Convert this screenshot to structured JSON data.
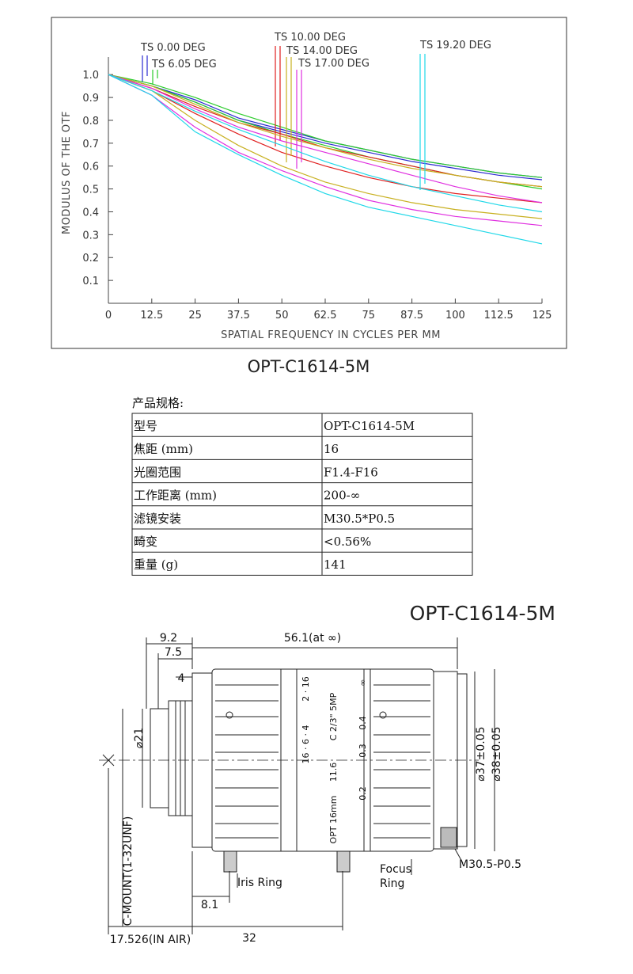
{
  "chart_data": {
    "type": "line",
    "xlabel": "SPATIAL FREQUENCY IN CYCLES PER MM",
    "ylabel": "MODULUS OF THE OTF",
    "caption": "OPT-C1614-5M",
    "x": [
      0,
      12.5,
      25,
      37.5,
      50,
      62.5,
      75,
      87.5,
      100,
      112.5,
      125
    ],
    "xlim": [
      0,
      125
    ],
    "xticks": [
      0,
      12.5,
      25,
      37.5,
      50,
      62.5,
      75,
      87.5,
      100,
      112.5,
      125
    ],
    "ylim": [
      0,
      1.25
    ],
    "yticks": [
      0.1,
      0.2,
      0.3,
      0.4,
      0.5,
      0.6,
      0.7,
      0.8,
      0.9,
      {
        "value": 1,
        "label": "1.0"
      }
    ],
    "series": [
      {
        "name": "TS 0.00 DEG",
        "color": "#2a2ad0",
        "t_values": [
          1,
          0.95,
          0.88,
          0.8,
          0.75,
          0.7,
          0.66,
          0.62,
          0.59,
          0.56,
          0.54
        ],
        "s_values": [
          1,
          0.95,
          0.89,
          0.81,
          0.76,
          0.71,
          0.67,
          0.63,
          0.6,
          0.57,
          0.55
        ]
      },
      {
        "name": "TS 6.05 DEG",
        "color": "#2ccc2c",
        "t_values": [
          1,
          0.96,
          0.9,
          0.83,
          0.77,
          0.71,
          0.67,
          0.63,
          0.6,
          0.57,
          0.55
        ],
        "s_values": [
          1,
          0.95,
          0.88,
          0.8,
          0.74,
          0.69,
          0.64,
          0.6,
          0.56,
          0.53,
          0.5
        ]
      },
      {
        "name": "TS 10.00 DEG",
        "color": "#e02020",
        "t_values": [
          1,
          0.94,
          0.86,
          0.79,
          0.74,
          0.68,
          0.64,
          0.6,
          0.56,
          0.53,
          0.51
        ],
        "s_values": [
          1,
          0.93,
          0.83,
          0.74,
          0.66,
          0.6,
          0.55,
          0.51,
          0.48,
          0.46,
          0.44
        ]
      },
      {
        "name": "TS 14.00 DEG",
        "color": "#c8b020",
        "t_values": [
          1,
          0.95,
          0.87,
          0.79,
          0.73,
          0.68,
          0.63,
          0.59,
          0.56,
          0.53,
          0.51
        ],
        "s_values": [
          1,
          0.93,
          0.8,
          0.69,
          0.6,
          0.53,
          0.48,
          0.44,
          0.41,
          0.39,
          0.37
        ]
      },
      {
        "name": "TS 17.00 DEG",
        "color": "#e030e0",
        "t_values": [
          1,
          0.94,
          0.85,
          0.77,
          0.71,
          0.66,
          0.61,
          0.56,
          0.51,
          0.47,
          0.44
        ],
        "s_values": [
          1,
          0.91,
          0.77,
          0.66,
          0.58,
          0.51,
          0.45,
          0.41,
          0.38,
          0.36,
          0.34
        ]
      },
      {
        "name": "TS 19.20 DEG",
        "color": "#20d8e8",
        "t_values": [
          1,
          0.93,
          0.84,
          0.76,
          0.69,
          0.62,
          0.56,
          0.51,
          0.47,
          0.43,
          0.4
        ],
        "s_values": [
          1,
          0.91,
          0.75,
          0.65,
          0.56,
          0.48,
          0.42,
          0.38,
          0.34,
          0.3,
          0.26
        ]
      }
    ]
  },
  "table": {
    "title": "产品规格:",
    "rows": [
      [
        "型号",
        "OPT-C1614-5M"
      ],
      [
        "焦距 (mm)",
        "16"
      ],
      [
        "光圈范围",
        "F1.4-F16"
      ],
      [
        "工作距离 (mm)",
        "200-∞"
      ],
      [
        "滤镜安装",
        "M30.5*P0.5"
      ],
      [
        "畸变",
        "<0.56%"
      ],
      [
        "重量 (g)",
        "141"
      ]
    ]
  },
  "drawing": {
    "title": "OPT-C1614-5M",
    "dims": {
      "d92": "9.2",
      "d75": "7.5",
      "d4": "4",
      "d561": "56.1(at ∞)",
      "d21": "⌀21",
      "d37": "⌀37±0.05",
      "d38": "⌀38±0.05",
      "d81": "8.1",
      "d17": "17.526(IN AIR)",
      "d32": "32"
    },
    "labels": {
      "mount": "C-MOUNT(1-32UNF)",
      "iris": "Iris Ring",
      "focus1": "Focus",
      "focus2": "Ring",
      "filter": "M30.5-P0.5"
    },
    "engraving": {
      "a": "2 · 16",
      "b": "16 · 6 · 4",
      "c": "11.6",
      "d": "OPT  16mm",
      "e": "C  2/3\"  5MP",
      "f": "∞",
      "g": "0.4",
      "h": "0.3",
      "i": "0.2"
    }
  }
}
